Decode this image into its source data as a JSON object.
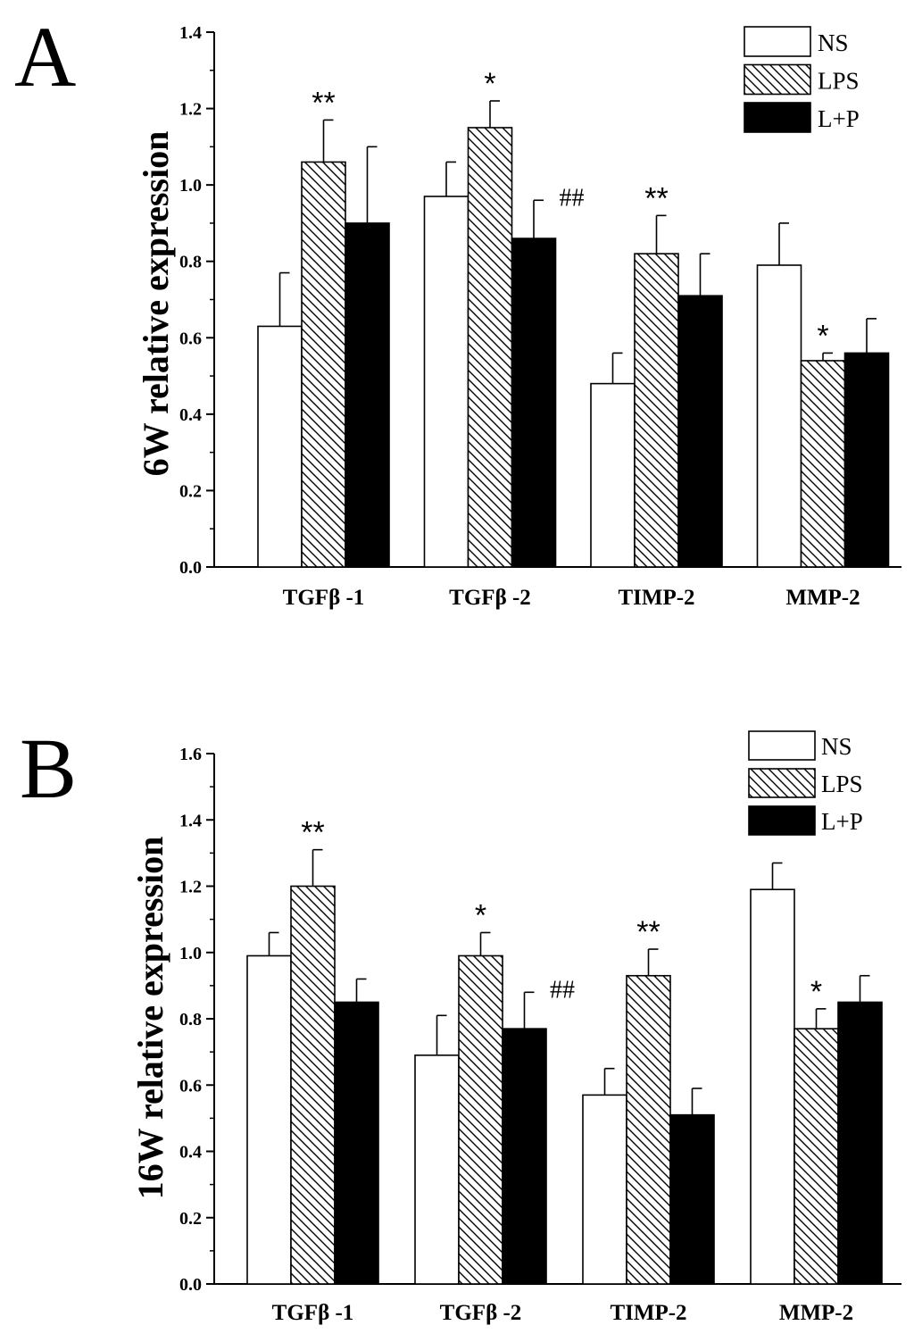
{
  "chart_data": [
    {
      "type": "bar",
      "panel": "A",
      "title": "",
      "xlabel": "",
      "ylabel": "6W  relative expression",
      "ylim": [
        0,
        1.4
      ],
      "yticks": [
        "0.0",
        "0.2",
        "0.4",
        "0.6",
        "0.8",
        "1.0",
        "1.2",
        "1.4"
      ],
      "categories": [
        "TGFβ -1",
        "TGFβ -2",
        "TIMP-2",
        "MMP-2"
      ],
      "series": [
        {
          "name": "NS",
          "pattern": "open",
          "values": [
            0.63,
            0.97,
            0.48,
            0.79
          ],
          "errors": [
            0.14,
            0.09,
            0.08,
            0.11
          ],
          "marks": [
            "",
            "",
            "",
            ""
          ]
        },
        {
          "name": "LPS",
          "pattern": "hatched",
          "values": [
            1.06,
            1.15,
            0.82,
            0.54
          ],
          "errors": [
            0.11,
            0.07,
            0.1,
            0.02
          ],
          "marks": [
            "**",
            "*",
            "**",
            "*"
          ]
        },
        {
          "name": "L+P",
          "pattern": "solid",
          "values": [
            0.9,
            0.86,
            0.71,
            0.56
          ],
          "errors": [
            0.2,
            0.1,
            0.11,
            0.09
          ],
          "marks": [
            "",
            "##",
            "",
            ""
          ]
        }
      ],
      "legend": "top-right"
    },
    {
      "type": "bar",
      "panel": "B",
      "title": "",
      "xlabel": "",
      "ylabel": "16W  relative expression",
      "ylim": [
        0,
        1.6
      ],
      "yticks": [
        "0.0",
        "0.2",
        "0.4",
        "0.6",
        "0.8",
        "1.0",
        "1.2",
        "1.4",
        "1.6"
      ],
      "categories": [
        "TGFβ -1",
        "TGFβ -2",
        "TIMP-2",
        "MMP-2"
      ],
      "series": [
        {
          "name": "NS",
          "pattern": "open",
          "values": [
            0.99,
            0.69,
            0.57,
            1.19
          ],
          "errors": [
            0.07,
            0.12,
            0.08,
            0.08
          ],
          "marks": [
            "",
            "",
            "",
            ""
          ]
        },
        {
          "name": "LPS",
          "pattern": "hatched",
          "values": [
            1.2,
            0.99,
            0.93,
            0.77
          ],
          "errors": [
            0.11,
            0.07,
            0.08,
            0.06
          ],
          "marks": [
            "**",
            "*",
            "**",
            "*"
          ]
        },
        {
          "name": "L+P",
          "pattern": "solid",
          "values": [
            0.85,
            0.77,
            0.51,
            0.85
          ],
          "errors": [
            0.07,
            0.11,
            0.08,
            0.08
          ],
          "marks": [
            "",
            "##",
            "",
            ""
          ]
        }
      ],
      "legend": "top-right"
    }
  ]
}
